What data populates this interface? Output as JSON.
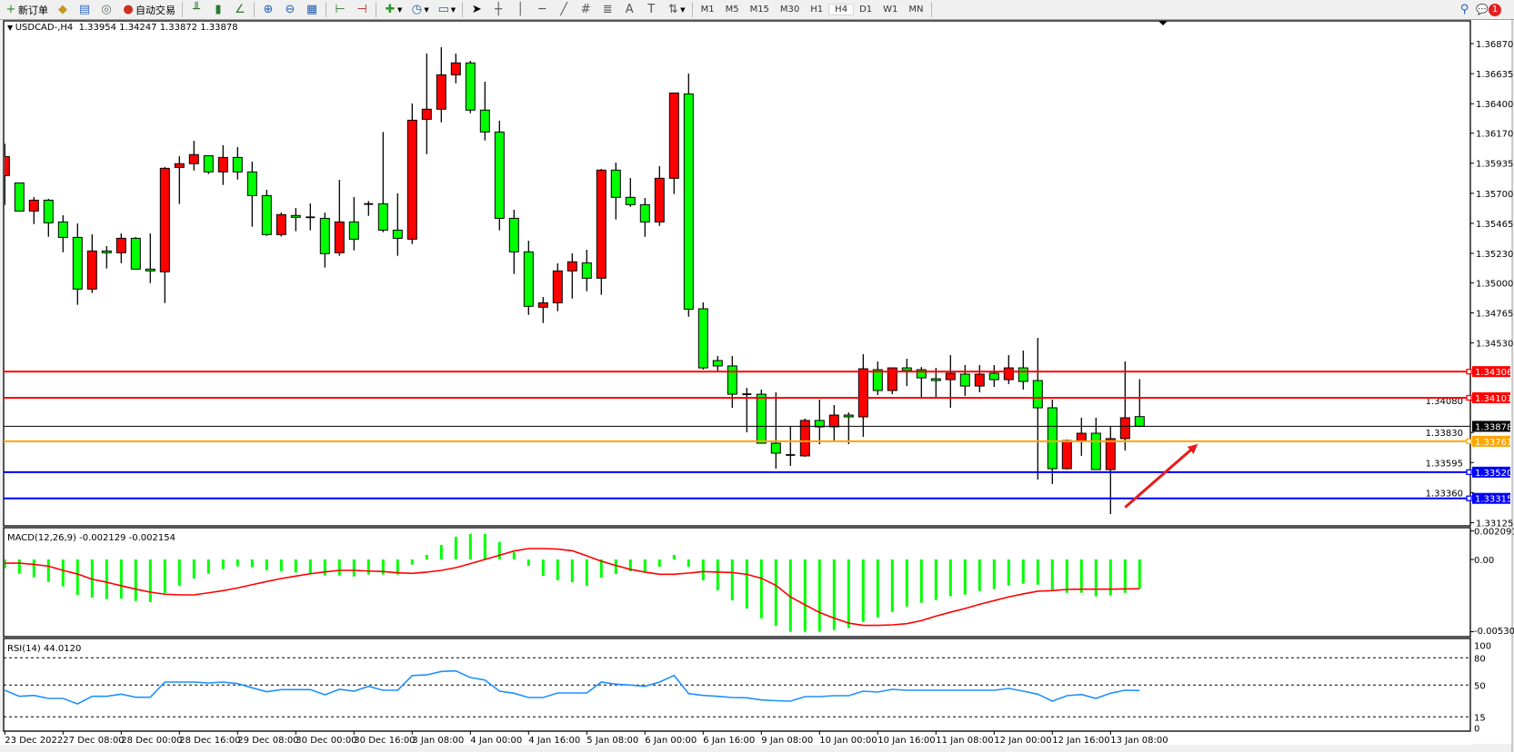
{
  "toolbar": {
    "new_order": "新订单",
    "auto_trading": "自动交易",
    "timeframes": [
      "M1",
      "M5",
      "M15",
      "M30",
      "H1",
      "H4",
      "D1",
      "W1",
      "MN"
    ],
    "active_timeframe": "H4",
    "notification_count": "1"
  },
  "chart_header": {
    "symbol_label": "USDCAD-,H4",
    "ohlc_text": "1.33954 1.34247 1.33872 1.33878"
  },
  "macd_header": "MACD(12,26,9) -0.002129 -0.002154",
  "rsi_header": "RSI(14) 44.0120",
  "colors": {
    "bull": "#ff0000",
    "bear": "#00ff00",
    "macd_hist": "#00ff00",
    "macd_signal": "#ff0000",
    "rsi": "#1e90ff",
    "resistance": "#ff0000",
    "support": "#0000ff",
    "pivot": "#ffa500",
    "current": "#000000",
    "arrow": "#e81c1c"
  },
  "chart_data": {
    "type": "candlestick",
    "symbol": "USDCAD-",
    "timeframe": "H4",
    "price_ticks": [
      "1.36870",
      "1.36635",
      "1.36400",
      "1.36170",
      "1.35935",
      "1.35700",
      "1.35465",
      "1.35230",
      "1.35000",
      "1.34765",
      "1.34530",
      "1.34080",
      "1.33830",
      "1.33595",
      "1.33360",
      "1.33125"
    ],
    "x_labels": [
      "23 Dec 2022",
      "27 Dec 08:00",
      "28 Dec 00:00",
      "28 Dec 16:00",
      "29 Dec 08:00",
      "30 Dec 00:00",
      "30 Dec 16:00",
      "3 Jan 08:00",
      "4 Jan 00:00",
      "4 Jan 16:00",
      "5 Jan 08:00",
      "6 Jan 00:00",
      "6 Jan 16:00",
      "9 Jan 08:00",
      "10 Jan 00:00",
      "10 Jan 16:00",
      "11 Jan 08:00",
      "12 Jan 00:00",
      "12 Jan 16:00",
      "13 Jan 08:00"
    ],
    "ohlc": [
      [
        1.35838,
        1.36087,
        1.35608,
        1.35987
      ],
      [
        1.35781,
        1.35781,
        1.35561,
        1.35561
      ],
      [
        1.35561,
        1.3567,
        1.35459,
        1.35646
      ],
      [
        1.35646,
        1.35656,
        1.3536,
        1.35469
      ],
      [
        1.35476,
        1.35528,
        1.35239,
        1.35355
      ],
      [
        1.35355,
        1.35464,
        1.34828,
        1.34951
      ],
      [
        1.34951,
        1.35379,
        1.3492,
        1.35249
      ],
      [
        1.35249,
        1.35287,
        1.35112,
        1.35235
      ],
      [
        1.35235,
        1.35386,
        1.35154,
        1.35348
      ],
      [
        1.35348,
        1.35358,
        1.35107,
        1.35107
      ],
      [
        1.35107,
        1.35386,
        1.34998,
        1.35093
      ],
      [
        1.35086,
        1.35905,
        1.34842,
        1.35895
      ],
      [
        1.35902,
        1.3599,
        1.35616,
        1.35931
      ],
      [
        1.35931,
        1.3611,
        1.35878,
        1.36002
      ],
      [
        1.35994,
        1.35994,
        1.3585,
        1.35867
      ],
      [
        1.35867,
        1.36075,
        1.35765,
        1.3598
      ],
      [
        1.3598,
        1.36061,
        1.35807,
        1.35867
      ],
      [
        1.35867,
        1.35947,
        1.35438,
        1.35682
      ],
      [
        1.35682,
        1.35727,
        1.35367,
        1.35377
      ],
      [
        1.35377,
        1.35549,
        1.35362,
        1.35533
      ],
      [
        1.35526,
        1.35585,
        1.35403,
        1.35512
      ],
      [
        1.35512,
        1.3562,
        1.3541,
        1.35512
      ],
      [
        1.35504,
        1.35549,
        1.35119,
        1.35228
      ],
      [
        1.35235,
        1.35805,
        1.35211,
        1.35476
      ],
      [
        1.35476,
        1.3567,
        1.35254,
        1.35341
      ],
      [
        1.35616,
        1.35639,
        1.35523,
        1.35616
      ],
      [
        1.35618,
        1.36179,
        1.35396,
        1.35412
      ],
      [
        1.35412,
        1.35699,
        1.35211,
        1.35348
      ],
      [
        1.35341,
        1.36402,
        1.35303,
        1.36271
      ],
      [
        1.36278,
        1.36792,
        1.36006,
        1.36357
      ],
      [
        1.36357,
        1.36842,
        1.36255,
        1.36626
      ],
      [
        1.36626,
        1.36792,
        1.3656,
        1.36719
      ],
      [
        1.36719,
        1.36735,
        1.36326,
        1.3635
      ],
      [
        1.3635,
        1.36572,
        1.36113,
        1.36179
      ],
      [
        1.36179,
        1.36267,
        1.3541,
        1.35504
      ],
      [
        1.35504,
        1.35571,
        1.35069,
        1.35242
      ],
      [
        1.35242,
        1.35329,
        1.34749,
        1.34816
      ],
      [
        1.34809,
        1.34889,
        1.34686,
        1.34844
      ],
      [
        1.34844,
        1.35152,
        1.34778,
        1.35093
      ],
      [
        1.35093,
        1.3523,
        1.34877,
        1.35164
      ],
      [
        1.35156,
        1.35258,
        1.34934,
        1.35036
      ],
      [
        1.35036,
        1.3589,
        1.34906,
        1.35881
      ],
      [
        1.35881,
        1.3594,
        1.35495,
        1.35668
      ],
      [
        1.35668,
        1.35819,
        1.35594,
        1.35611
      ],
      [
        1.35611,
        1.35663,
        1.3536,
        1.35476
      ],
      [
        1.35476,
        1.35912,
        1.35445,
        1.35817
      ],
      [
        1.35817,
        1.36484,
        1.35694,
        1.36484
      ],
      [
        1.36477,
        1.36636,
        1.34735,
        1.34794
      ],
      [
        1.34797,
        1.34847,
        1.34321,
        1.34335
      ],
      [
        1.34392,
        1.34428,
        1.34307,
        1.3435
      ],
      [
        1.3435,
        1.34428,
        1.34023,
        1.34129
      ],
      [
        1.34129,
        1.34179,
        1.33831,
        1.34129
      ],
      [
        1.34129,
        1.34165,
        1.33746,
        1.33746
      ],
      [
        1.33746,
        1.34144,
        1.33547,
        1.33668
      ],
      [
        1.33654,
        1.33878,
        1.33569,
        1.33654
      ],
      [
        1.33647,
        1.33938,
        1.3364,
        1.33924
      ],
      [
        1.33924,
        1.34087,
        1.33739,
        1.33874
      ],
      [
        1.33874,
        1.34044,
        1.3376,
        1.33966
      ],
      [
        1.33966,
        1.33987,
        1.33739,
        1.33952
      ],
      [
        1.33952,
        1.34442,
        1.33796,
        1.34328
      ],
      [
        1.34321,
        1.34385,
        1.34122,
        1.34158
      ],
      [
        1.34158,
        1.34335,
        1.34129,
        1.34335
      ],
      [
        1.34335,
        1.34406,
        1.34193,
        1.34314
      ],
      [
        1.34321,
        1.34342,
        1.34101,
        1.34257
      ],
      [
        1.3425,
        1.34335,
        1.34101,
        1.34236
      ],
      [
        1.34243,
        1.34435,
        1.34023,
        1.34293
      ],
      [
        1.34286,
        1.34357,
        1.34115,
        1.34193
      ],
      [
        1.34193,
        1.34357,
        1.34144,
        1.34286
      ],
      [
        1.34293,
        1.34357,
        1.34186,
        1.34243
      ],
      [
        1.34243,
        1.34435,
        1.34208,
        1.34335
      ],
      [
        1.34335,
        1.3447,
        1.34165,
        1.34229
      ],
      [
        1.34236,
        1.3457,
        1.33462,
        1.34023
      ],
      [
        1.34023,
        1.34087,
        1.33427,
        1.33547
      ],
      [
        1.33547,
        1.33774,
        1.3354,
        1.33767
      ],
      [
        1.3376,
        1.33945,
        1.33647,
        1.33824
      ],
      [
        1.33824,
        1.33945,
        1.3354,
        1.3354
      ],
      [
        1.3354,
        1.33878,
        1.33192,
        1.33782
      ],
      [
        1.33782,
        1.34385,
        1.33689,
        1.33945
      ],
      [
        1.33954,
        1.34247,
        1.33872,
        1.33878
      ]
    ],
    "horizontal_lines": [
      {
        "price": 1.34306,
        "label": "1.34306",
        "color": "#ff0000"
      },
      {
        "price": 1.34101,
        "label": "1.34101",
        "color": "#ff0000"
      },
      {
        "price": 1.33878,
        "label": "1.33878",
        "color": "#000000",
        "current": true
      },
      {
        "price": 1.33761,
        "label": "1.33761",
        "color": "#ffa500"
      },
      {
        "price": 1.3352,
        "label": "1.33520",
        "color": "#0000ff"
      },
      {
        "price": 1.33315,
        "label": "1.33315",
        "color": "#0000ff"
      }
    ],
    "annotation_arrow": {
      "from_bar": 77,
      "from_price": 1.33245,
      "to_bar": 82,
      "to_price": 1.3374,
      "color": "#e81c1c"
    },
    "macd": {
      "params": "12,26,9",
      "axis_labels": [
        "0.002091",
        "0.00",
        "-0.005303"
      ],
      "range": [
        -0.005303,
        0.002091
      ],
      "histogram": [
        -0.00065,
        -0.00105,
        -0.00131,
        -0.00165,
        -0.00198,
        -0.0026,
        -0.0028,
        -0.00291,
        -0.00287,
        -0.00305,
        -0.00313,
        -0.00247,
        -0.00193,
        -0.0014,
        -0.00105,
        -0.00071,
        -0.00051,
        -0.00058,
        -0.00078,
        -0.00087,
        -0.00096,
        -0.001,
        -0.00118,
        -0.00118,
        -0.00125,
        -0.00111,
        -0.00111,
        -0.00111,
        -0.00038,
        0.00033,
        0.00107,
        0.00167,
        0.00187,
        0.00187,
        0.00127,
        0.00053,
        -0.00047,
        -0.0012,
        -0.00153,
        -0.00167,
        -0.00193,
        -0.00133,
        -0.00107,
        -0.00087,
        -0.00087,
        -0.00053,
        0.00033,
        -0.00053,
        -0.00153,
        -0.00227,
        -0.003,
        -0.0036,
        -0.00433,
        -0.00487,
        -0.00531,
        -0.00531,
        -0.00531,
        -0.00518,
        -0.00504,
        -0.00458,
        -0.00425,
        -0.00385,
        -0.00345,
        -0.00318,
        -0.00298,
        -0.00271,
        -0.00258,
        -0.00231,
        -0.00218,
        -0.00191,
        -0.00178,
        -0.00185,
        -0.00225,
        -0.00245,
        -0.00245,
        -0.00271,
        -0.00265,
        -0.00245,
        -0.002129
      ],
      "signal": [
        -0.00027,
        -0.00027,
        -0.00036,
        -0.00049,
        -0.0008,
        -0.00107,
        -0.00145,
        -0.00167,
        -0.00193,
        -0.00218,
        -0.0024,
        -0.00255,
        -0.0026,
        -0.0026,
        -0.00245,
        -0.00229,
        -0.00209,
        -0.00185,
        -0.00162,
        -0.0014,
        -0.00122,
        -0.00105,
        -0.00091,
        -0.0008,
        -0.0008,
        -0.00085,
        -0.00089,
        -0.00098,
        -0.00102,
        -0.00093,
        -0.0008,
        -0.0006,
        -0.00031,
        0.0,
        0.00031,
        0.00062,
        0.0008,
        0.0008,
        0.00076,
        0.00064,
        0.00027,
        -0.00013,
        -0.00044,
        -0.00073,
        -0.00093,
        -0.00109,
        -0.00109,
        -0.001,
        -0.00089,
        -0.00093,
        -0.00096,
        -0.00109,
        -0.00138,
        -0.0019,
        -0.00275,
        -0.00333,
        -0.00389,
        -0.00431,
        -0.00467,
        -0.00484,
        -0.00484,
        -0.0048,
        -0.00471,
        -0.00449,
        -0.00416,
        -0.00387,
        -0.0036,
        -0.00329,
        -0.00302,
        -0.00275,
        -0.00253,
        -0.00233,
        -0.00229,
        -0.0022,
        -0.00218,
        -0.00218,
        -0.00218,
        -0.00216,
        -0.002154
      ]
    },
    "rsi": {
      "period": 14,
      "axis_labels": [
        "100",
        "80",
        "50",
        "15",
        "0"
      ],
      "levels": [
        80,
        50,
        15
      ],
      "range": [
        0,
        100
      ],
      "values": [
        44.3,
        37.6,
        38.6,
        35.3,
        35.3,
        29.3,
        37.6,
        37.6,
        40,
        36.6,
        36.6,
        53.3,
        53.3,
        53.3,
        52.3,
        53.3,
        51.6,
        47,
        42.6,
        45,
        45,
        45,
        39.3,
        45.3,
        43.3,
        48.6,
        44.3,
        44.3,
        60.5,
        61.2,
        65,
        65.6,
        58.3,
        55.6,
        43.3,
        41,
        36.3,
        36.3,
        41.3,
        41.3,
        41.3,
        53.3,
        51,
        50,
        48.6,
        53.3,
        60.6,
        40.6,
        38.6,
        37.6,
        36.3,
        36,
        33.6,
        32.8,
        32.3,
        37.3,
        37.3,
        38.3,
        38.3,
        43.3,
        42.3,
        45.3,
        44.3,
        44.3,
        44.3,
        44.3,
        44.3,
        44.3,
        44.3,
        46.3,
        43.3,
        40,
        32.3,
        38.3,
        39.6,
        35.3,
        41,
        44.3,
        44.012
      ]
    }
  }
}
